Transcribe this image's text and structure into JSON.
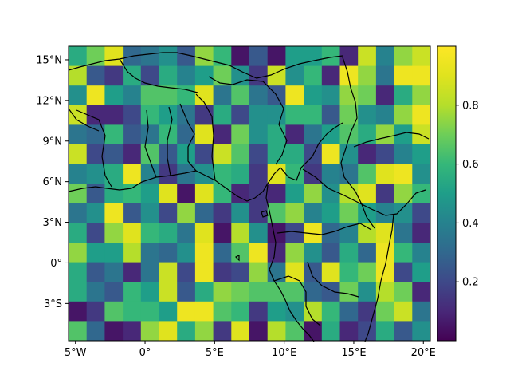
{
  "chart_data": {
    "type": "heatmap",
    "title": "",
    "xlabel": "",
    "ylabel": "",
    "xlim": [
      -5.5,
      20.5
    ],
    "ylim": [
      -5.75,
      16
    ],
    "grid": false,
    "colormap": "viridis",
    "colorbar": {
      "range": [
        0,
        1
      ],
      "ticks": [
        0.2,
        0.4,
        0.6,
        0.8
      ],
      "tick_labels": [
        "0.2",
        "0.4",
        "0.6",
        "0.8"
      ],
      "placement": "right"
    },
    "x_ticks": [
      -5,
      0,
      5,
      10,
      15,
      20
    ],
    "x_tick_labels": [
      "5°W",
      "0°",
      "5°E",
      "10°E",
      "15°E",
      "20°E"
    ],
    "y_ticks": [
      -3,
      0,
      3,
      6,
      9,
      12,
      15
    ],
    "y_tick_labels": [
      "3°S",
      "0°",
      "3°N",
      "6°N",
      "9°N",
      "12°N",
      "15°N"
    ],
    "overlay": "coastlines (Gulf of Guinea, West & Central Africa)",
    "x_edges": [
      -5.5,
      -4.2,
      -2.9,
      -1.6,
      -0.3,
      1.0,
      2.3,
      3.6,
      4.9,
      6.2,
      7.5,
      8.8,
      10.1,
      11.4,
      12.7,
      14.0,
      15.3,
      16.6,
      17.9,
      19.2,
      20.5
    ],
    "y_edges": [
      16,
      14.55,
      13.1,
      11.65,
      10.2,
      8.75,
      7.3,
      5.85,
      4.4,
      2.95,
      1.5,
      0.05,
      -1.4,
      -2.85,
      -4.3,
      -5.75
    ],
    "values": [
      [
        0.55,
        0.7,
        0.9,
        0.3,
        0.35,
        0.45,
        0.25,
        0.75,
        0.6,
        0.05,
        0.25,
        0.05,
        0.5,
        0.5,
        0.6,
        0.1,
        0.85,
        0.4,
        0.75,
        0.85
      ],
      [
        0.8,
        0.25,
        0.15,
        0.55,
        0.2,
        0.55,
        0.4,
        0.5,
        0.7,
        0.45,
        0.15,
        0.85,
        0.45,
        0.6,
        0.1,
        0.95,
        0.75,
        0.35,
        0.95,
        0.95
      ],
      [
        0.45,
        0.95,
        0.5,
        0.4,
        0.65,
        0.65,
        0.6,
        0.9,
        0.35,
        0.65,
        0.35,
        0.25,
        0.95,
        0.5,
        0.45,
        0.75,
        0.7,
        0.1,
        0.55,
        0.75
      ],
      [
        0.85,
        0.1,
        0.1,
        0.2,
        0.6,
        0.5,
        0.35,
        0.15,
        0.55,
        0.2,
        0.45,
        0.45,
        0.6,
        0.6,
        0.25,
        0.7,
        0.45,
        0.4,
        0.75,
        0.95
      ],
      [
        0.35,
        0.3,
        0.6,
        0.25,
        0.35,
        0.6,
        0.3,
        0.9,
        0.1,
        0.7,
        0.45,
        0.55,
        0.1,
        0.35,
        0.5,
        0.65,
        0.55,
        0.75,
        0.5,
        0.85
      ],
      [
        0.85,
        0.2,
        0.25,
        0.1,
        0.65,
        0.25,
        0.5,
        0.2,
        0.85,
        0.65,
        0.2,
        0.55,
        0.55,
        0.2,
        0.95,
        0.45,
        0.1,
        0.2,
        0.4,
        0.5
      ],
      [
        0.4,
        0.45,
        0.55,
        0.95,
        0.4,
        0.15,
        0.35,
        0.45,
        0.6,
        0.55,
        0.15,
        0.9,
        0.6,
        0.15,
        0.4,
        0.35,
        0.65,
        0.9,
        0.95,
        0.45
      ],
      [
        0.7,
        0.25,
        0.55,
        0.6,
        0.5,
        0.9,
        0.05,
        0.9,
        0.6,
        0.1,
        0.15,
        0.1,
        0.5,
        0.75,
        0.45,
        0.8,
        0.9,
        0.15,
        0.75,
        0.6
      ],
      [
        0.35,
        0.45,
        0.95,
        0.25,
        0.45,
        0.2,
        0.75,
        0.3,
        0.15,
        0.45,
        0.15,
        0.65,
        0.75,
        0.4,
        0.5,
        0.7,
        0.5,
        0.4,
        0.45,
        0.2
      ],
      [
        0.55,
        0.2,
        0.75,
        0.9,
        0.6,
        0.55,
        0.35,
        0.9,
        0.05,
        0.8,
        0.45,
        0.05,
        0.2,
        0.95,
        0.3,
        0.4,
        0.8,
        0.9,
        0.35,
        0.1
      ],
      [
        0.75,
        0.5,
        0.5,
        0.8,
        0.35,
        0.3,
        0.45,
        0.95,
        0.3,
        0.65,
        0.95,
        0.1,
        0.75,
        0.45,
        0.25,
        0.55,
        0.3,
        0.95,
        0.6,
        0.4
      ],
      [
        0.55,
        0.25,
        0.35,
        0.1,
        0.35,
        0.85,
        0.2,
        0.95,
        0.15,
        0.2,
        0.75,
        0.35,
        0.9,
        0.25,
        0.9,
        0.6,
        0.7,
        0.95,
        0.2,
        0.5
      ],
      [
        0.55,
        0.35,
        0.25,
        0.6,
        0.5,
        0.85,
        0.25,
        0.55,
        0.75,
        0.7,
        0.65,
        0.65,
        0.65,
        0.3,
        0.25,
        0.7,
        0.45,
        0.8,
        0.7,
        0.1
      ],
      [
        0.05,
        0.15,
        0.65,
        0.6,
        0.6,
        0.5,
        0.95,
        0.95,
        0.65,
        0.6,
        0.15,
        0.5,
        0.45,
        0.8,
        0.6,
        0.3,
        0.15,
        0.7,
        0.85,
        0.35
      ],
      [
        0.65,
        0.3,
        0.05,
        0.1,
        0.75,
        0.9,
        0.55,
        0.75,
        0.15,
        0.9,
        0.05,
        0.8,
        0.65,
        0.05,
        0.55,
        0.1,
        0.2,
        0.55,
        0.25,
        0.45
      ]
    ],
    "colorbar_stops": [
      [
        0.0,
        "#440154"
      ],
      [
        0.1,
        "#482878"
      ],
      [
        0.2,
        "#3e4989"
      ],
      [
        0.3,
        "#31688e"
      ],
      [
        0.4,
        "#26828e"
      ],
      [
        0.5,
        "#1f9e89"
      ],
      [
        0.6,
        "#35b779"
      ],
      [
        0.7,
        "#6ece58"
      ],
      [
        0.8,
        "#b5de2b"
      ],
      [
        0.9,
        "#e0e31e"
      ],
      [
        1.0,
        "#fde725"
      ]
    ]
  }
}
